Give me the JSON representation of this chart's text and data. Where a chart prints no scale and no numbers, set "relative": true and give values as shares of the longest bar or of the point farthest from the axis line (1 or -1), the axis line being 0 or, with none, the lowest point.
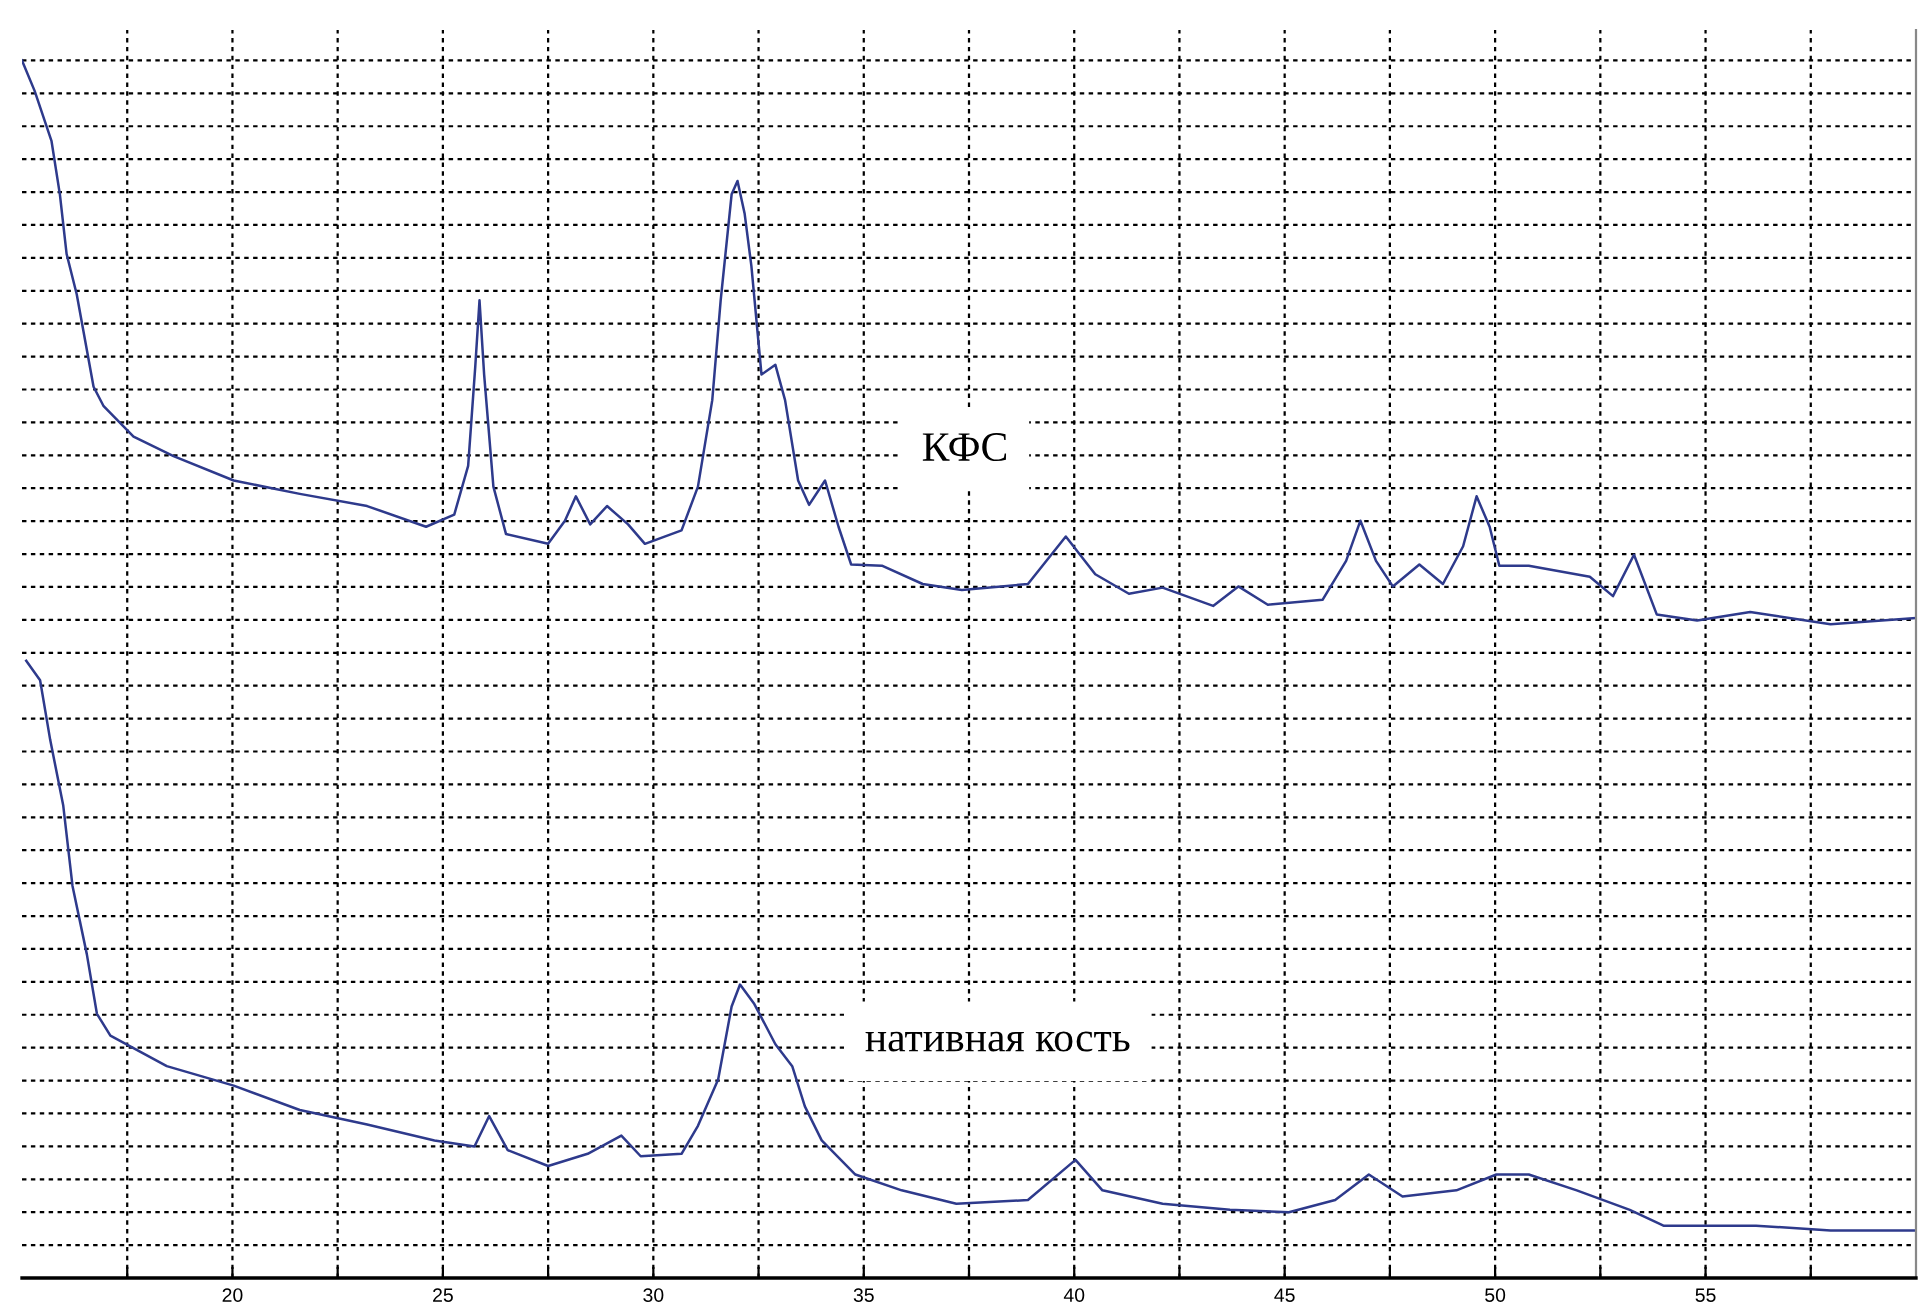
{
  "chart_data": {
    "type": "line",
    "relative": true,
    "xlim": [
      15,
      60
    ],
    "xticks": [
      {
        "value": 17.5,
        "label": null
      },
      20,
      {
        "value": 22.5,
        "label": null
      },
      25,
      {
        "value": 27.5,
        "label": null
      },
      30,
      {
        "value": 32.5,
        "label": null
      },
      35,
      {
        "value": 37.5,
        "label": null
      },
      40,
      {
        "value": 42.5,
        "label": null
      },
      45,
      {
        "value": 47.5,
        "label": null
      },
      50,
      {
        "value": 52.5,
        "label": null
      },
      55,
      {
        "value": 57.5,
        "label": null
      }
    ],
    "tick_labels": "x",
    "grid": true,
    "legend": false,
    "marker": "none",
    "line_style": "solid",
    "series": [
      {
        "name": "КФС",
        "color": "#2e3a8c",
        "x": [
          15.0,
          15.3,
          15.7,
          15.9,
          16.06,
          16.3,
          16.7,
          16.94,
          17.65,
          18.6,
          20.03,
          21.6,
          23.2,
          24.6,
          25.27,
          25.6,
          25.77,
          25.87,
          25.98,
          26.2,
          26.5,
          27.5,
          27.9,
          28.16,
          28.5,
          28.9,
          29.4,
          29.8,
          30.67,
          31.06,
          31.4,
          31.6,
          31.86,
          32.0,
          32.17,
          32.33,
          32.57,
          32.9,
          33.13,
          33.44,
          33.7,
          34.08,
          34.4,
          34.7,
          35.43,
          36.4,
          37.33,
          38.9,
          39.8,
          40.5,
          41.3,
          42.1,
          43.3,
          43.9,
          44.6,
          45.9,
          46.46,
          46.8,
          47.17,
          47.57,
          48.2,
          48.76,
          49.24,
          49.56,
          49.87,
          50.1,
          50.8,
          52.25,
          52.8,
          53.3,
          53.84,
          54.8,
          56.06,
          57.97,
          60.0
        ],
        "values": [
          1.0,
          0.975,
          0.934,
          0.89,
          0.841,
          0.808,
          0.732,
          0.716,
          0.691,
          0.675,
          0.655,
          0.644,
          0.634,
          0.617,
          0.627,
          0.667,
          0.749,
          0.803,
          0.742,
          0.65,
          0.611,
          0.603,
          0.622,
          0.642,
          0.619,
          0.634,
          0.619,
          0.603,
          0.614,
          0.65,
          0.721,
          0.803,
          0.89,
          0.901,
          0.874,
          0.831,
          0.742,
          0.75,
          0.721,
          0.655,
          0.635,
          0.655,
          0.617,
          0.586,
          0.585,
          0.57,
          0.565,
          0.57,
          0.609,
          0.578,
          0.562,
          0.567,
          0.552,
          0.568,
          0.553,
          0.557,
          0.589,
          0.622,
          0.589,
          0.568,
          0.586,
          0.57,
          0.601,
          0.642,
          0.617,
          0.585,
          0.585,
          0.576,
          0.56,
          0.594,
          0.545,
          0.54,
          0.547,
          0.537,
          0.542
        ]
      },
      {
        "name": "нативная кость",
        "color": "#2e3a8c",
        "x": [
          15.1,
          15.43,
          15.67,
          15.98,
          16.2,
          16.54,
          16.78,
          17.1,
          18.44,
          20.03,
          21.6,
          23.2,
          24.8,
          25.75,
          26.1,
          26.54,
          27.5,
          28.44,
          29.24,
          29.7,
          30.67,
          31.06,
          31.54,
          31.86,
          32.06,
          32.4,
          32.9,
          33.3,
          33.6,
          34.0,
          34.8,
          35.9,
          37.2,
          38.9,
          40.03,
          40.67,
          42.1,
          43.7,
          45.1,
          46.2,
          47.0,
          47.8,
          49.08,
          50.03,
          50.8,
          51.94,
          53.2,
          54.0,
          56.2,
          57.97,
          60.0
        ],
        "values": [
          0.507,
          0.491,
          0.442,
          0.388,
          0.322,
          0.266,
          0.217,
          0.199,
          0.174,
          0.158,
          0.138,
          0.126,
          0.113,
          0.108,
          0.133,
          0.105,
          0.092,
          0.102,
          0.117,
          0.1,
          0.102,
          0.125,
          0.163,
          0.223,
          0.241,
          0.225,
          0.192,
          0.174,
          0.141,
          0.113,
          0.085,
          0.072,
          0.061,
          0.064,
          0.097,
          0.072,
          0.061,
          0.056,
          0.054,
          0.064,
          0.085,
          0.067,
          0.072,
          0.085,
          0.085,
          0.072,
          0.056,
          0.043,
          0.043,
          0.039,
          0.039
        ]
      }
    ]
  }
}
